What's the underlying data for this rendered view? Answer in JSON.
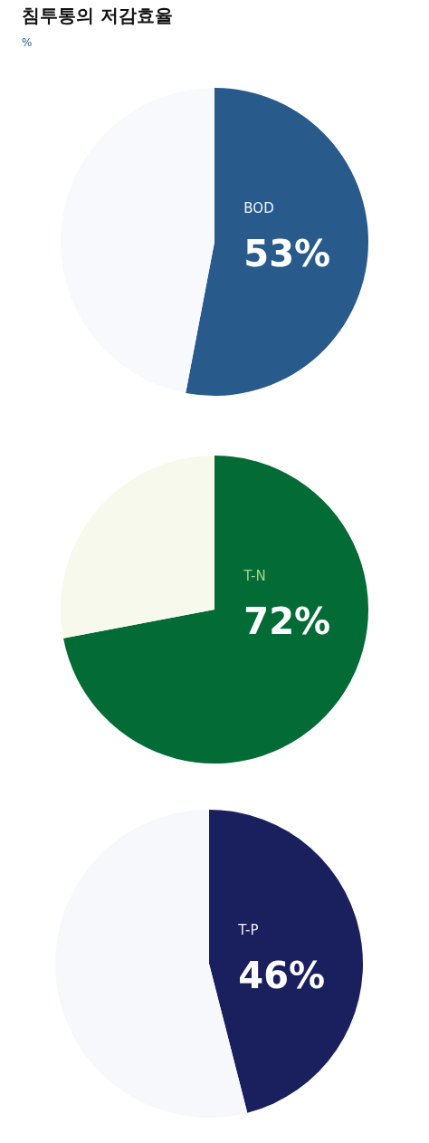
{
  "chart_data": [
    {
      "type": "pie",
      "title": "침투통의 저감효율",
      "subtitle": "%",
      "categories": [
        "BOD",
        null
      ],
      "values": [
        53,
        47
      ],
      "colors": [
        "#285a8b",
        "#f7f9fc"
      ],
      "value_labels": [
        "53%",
        null
      ],
      "legend": false
    },
    {
      "type": "pie",
      "categories": [
        "T-N",
        null
      ],
      "values": [
        72,
        28
      ],
      "colors": [
        "#036b35",
        "#f6f9ec"
      ],
      "value_labels": [
        "72%",
        null
      ],
      "legend": false
    },
    {
      "type": "pie",
      "categories": [
        "T-P",
        null
      ],
      "values": [
        46,
        54
      ],
      "colors": [
        "#1a1f5e",
        "#f6f8fc"
      ],
      "value_labels": [
        "46%",
        null
      ],
      "legend": false
    }
  ]
}
